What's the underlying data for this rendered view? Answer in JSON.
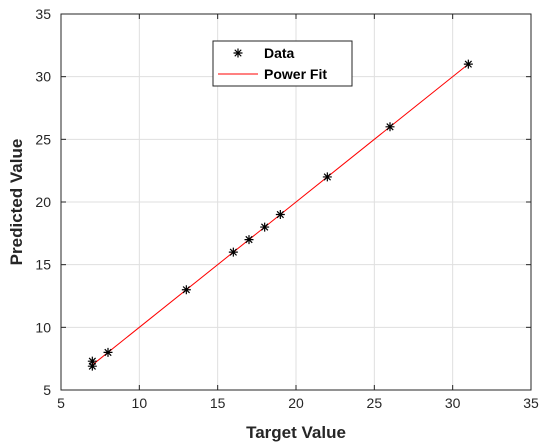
{
  "chart_data": {
    "type": "scatter",
    "xlabel": "Target Value",
    "ylabel": "Predicted Value",
    "xlim": [
      5,
      35
    ],
    "ylim": [
      5,
      35
    ],
    "x_ticks": [
      5,
      10,
      15,
      20,
      25,
      30,
      35
    ],
    "y_ticks": [
      5,
      10,
      15,
      20,
      25,
      30,
      35
    ],
    "grid": true,
    "legend_position": "top-center",
    "series": [
      {
        "name": "Data",
        "kind": "scatter",
        "marker": "asterisk",
        "color": "#000000",
        "x": [
          7,
          7,
          8,
          13,
          16,
          17,
          18,
          19,
          22,
          26,
          31
        ],
        "y": [
          7.3,
          6.9,
          8.0,
          13.0,
          16.0,
          17.0,
          18.0,
          19.0,
          22.0,
          26.0,
          31.0
        ]
      },
      {
        "name": "Power Fit",
        "kind": "line",
        "color": "#ff0000",
        "x": [
          7,
          31
        ],
        "y": [
          7.0,
          31.0
        ]
      }
    ]
  }
}
